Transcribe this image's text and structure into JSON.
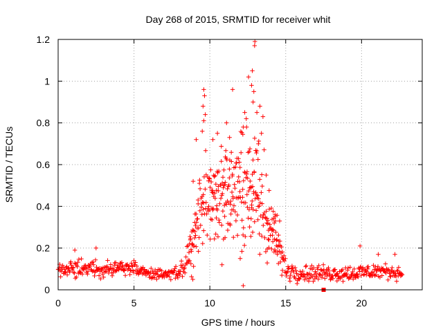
{
  "chart_data": {
    "type": "scatter",
    "title": "Day 268 of 2015, SRMTID for receiver whit",
    "xlabel": "GPS time / hours",
    "ylabel": "SRMTID / TECUs",
    "xlim": [
      0,
      24
    ],
    "ylim": [
      0,
      1.2
    ],
    "x_ticks": [
      0,
      5,
      10,
      15,
      20
    ],
    "x_tick_labels": [
      "0",
      "5",
      "10",
      "15",
      "20"
    ],
    "y_ticks": [
      0,
      0.2,
      0.4,
      0.6,
      0.8,
      1.0,
      1.2
    ],
    "y_tick_labels": [
      "0",
      "0.2",
      "0.4",
      "0.6",
      "0.8",
      "1",
      "1.2"
    ],
    "grid": true,
    "marker": "+",
    "color": "#ff0000",
    "series": [
      {
        "name": "SRMTID",
        "x_start": 0.0,
        "x_end": 22.7,
        "x_step": 0.0333,
        "envelope": [
          {
            "x": 0.0,
            "y": 0.09,
            "spread": 0.035
          },
          {
            "x": 1.0,
            "y": 0.1,
            "spread": 0.04
          },
          {
            "x": 2.5,
            "y": 0.1,
            "spread": 0.05
          },
          {
            "x": 4.0,
            "y": 0.11,
            "spread": 0.04
          },
          {
            "x": 5.0,
            "y": 0.1,
            "spread": 0.04
          },
          {
            "x": 6.5,
            "y": 0.07,
            "spread": 0.03
          },
          {
            "x": 7.5,
            "y": 0.07,
            "spread": 0.03
          },
          {
            "x": 8.2,
            "y": 0.1,
            "spread": 0.05
          },
          {
            "x": 8.8,
            "y": 0.2,
            "spread": 0.12
          },
          {
            "x": 9.5,
            "y": 0.45,
            "spread": 0.22
          },
          {
            "x": 10.5,
            "y": 0.48,
            "spread": 0.2
          },
          {
            "x": 11.5,
            "y": 0.45,
            "spread": 0.2
          },
          {
            "x": 12.5,
            "y": 0.52,
            "spread": 0.25
          },
          {
            "x": 13.5,
            "y": 0.4,
            "spread": 0.2
          },
          {
            "x": 14.3,
            "y": 0.25,
            "spread": 0.12
          },
          {
            "x": 15.0,
            "y": 0.1,
            "spread": 0.06
          },
          {
            "x": 16.0,
            "y": 0.08,
            "spread": 0.04
          },
          {
            "x": 18.0,
            "y": 0.08,
            "spread": 0.04
          },
          {
            "x": 19.5,
            "y": 0.08,
            "spread": 0.04
          },
          {
            "x": 21.0,
            "y": 0.09,
            "spread": 0.04
          },
          {
            "x": 22.7,
            "y": 0.08,
            "spread": 0.03
          }
        ],
        "peaks": [
          {
            "x": 9.6,
            "y": 0.96
          },
          {
            "x": 9.65,
            "y": 0.93
          },
          {
            "x": 9.55,
            "y": 0.88
          },
          {
            "x": 9.7,
            "y": 0.84
          },
          {
            "x": 9.6,
            "y": 0.81
          },
          {
            "x": 9.5,
            "y": 0.76
          },
          {
            "x": 11.5,
            "y": 0.96
          },
          {
            "x": 11.1,
            "y": 0.8
          },
          {
            "x": 11.3,
            "y": 0.73
          },
          {
            "x": 12.3,
            "y": 0.85
          },
          {
            "x": 12.4,
            "y": 0.82
          },
          {
            "x": 12.2,
            "y": 0.78
          },
          {
            "x": 12.55,
            "y": 1.02
          },
          {
            "x": 12.8,
            "y": 1.05
          },
          {
            "x": 12.75,
            "y": 0.98
          },
          {
            "x": 12.9,
            "y": 0.95
          },
          {
            "x": 12.95,
            "y": 1.17
          },
          {
            "x": 12.97,
            "y": 1.19
          },
          {
            "x": 12.85,
            "y": 0.9
          },
          {
            "x": 13.1,
            "y": 0.85
          },
          {
            "x": 13.3,
            "y": 0.88
          },
          {
            "x": 13.5,
            "y": 0.83
          },
          {
            "x": 13.4,
            "y": 0.75
          },
          {
            "x": 13.2,
            "y": 0.7
          },
          {
            "x": 8.9,
            "y": 0.52
          },
          {
            "x": 9.1,
            "y": 0.72
          },
          {
            "x": 10.2,
            "y": 0.72
          },
          {
            "x": 10.5,
            "y": 0.75
          },
          {
            "x": 14.3,
            "y": 0.36
          },
          {
            "x": 14.6,
            "y": 0.33
          },
          {
            "x": 2.5,
            "y": 0.2
          },
          {
            "x": 1.1,
            "y": 0.19
          },
          {
            "x": 19.9,
            "y": 0.21
          },
          {
            "x": 21.1,
            "y": 0.17
          },
          {
            "x": 22.2,
            "y": 0.17
          },
          {
            "x": 12.2,
            "y": 0.02
          },
          {
            "x": 11.0,
            "y": 0.25
          },
          {
            "x": 12.0,
            "y": 0.15
          },
          {
            "x": 10.8,
            "y": 0.12
          }
        ]
      }
    ]
  }
}
